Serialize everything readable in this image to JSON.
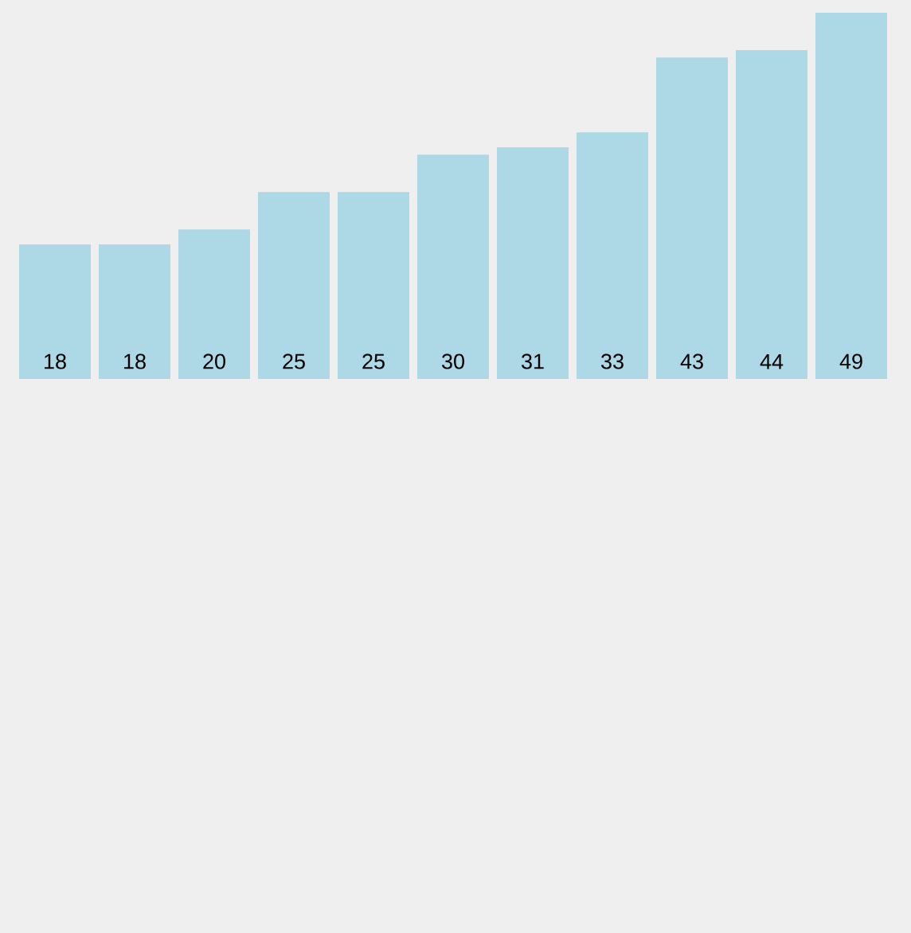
{
  "chart_data": {
    "type": "bar",
    "categories": [
      null,
      null,
      null,
      null,
      null,
      null,
      null,
      null,
      null,
      null,
      null
    ],
    "values": [
      18,
      18,
      20,
      25,
      25,
      30,
      31,
      33,
      43,
      44,
      49
    ],
    "color": "#add8e6",
    "data_labels": true
  }
}
